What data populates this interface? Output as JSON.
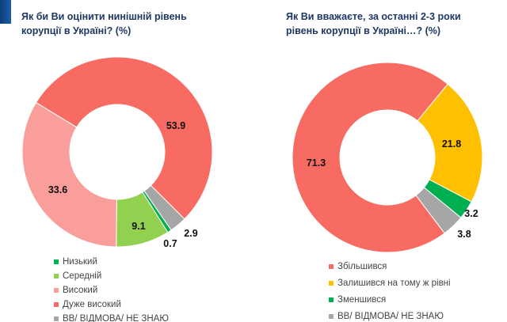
{
  "chart_data": [
    {
      "type": "pie",
      "donut": true,
      "title": "Як би Ви оцінити нинішній рівень корупції в Україні? (%)",
      "categories": [
        "Низький",
        "Середній",
        "Високий",
        "Дуже високий",
        "ВВ/ ВІДМОВА/ НЕ ЗНАЮ"
      ],
      "values": [
        0.7,
        9.1,
        33.6,
        53.9,
        2.9
      ],
      "labels": [
        "0.7",
        "9.1",
        "33.6",
        "53.9",
        "2.9"
      ],
      "colors": [
        "#00b050",
        "#92d050",
        "#f99e9b",
        "#f76b63",
        "#a6a6a6"
      ],
      "legend": "bottom-left"
    },
    {
      "type": "pie",
      "donut": true,
      "title": "Як Ви вважаєте, за останні 2-3 роки рівень корупції в Україні…? (%)",
      "categories": [
        "Збільшився",
        "Залишився на тому ж рівні",
        "Зменшився",
        "ВВ/ ВІДМОВА/ НЕ ЗНАЮ"
      ],
      "values": [
        71.3,
        21.8,
        3.2,
        3.8
      ],
      "labels": [
        "71.3",
        "21.8",
        "3.2",
        "3.8"
      ],
      "colors": [
        "#f76b63",
        "#ffc000",
        "#00b050",
        "#a6a6a6"
      ],
      "legend": "bottom-left"
    }
  ]
}
